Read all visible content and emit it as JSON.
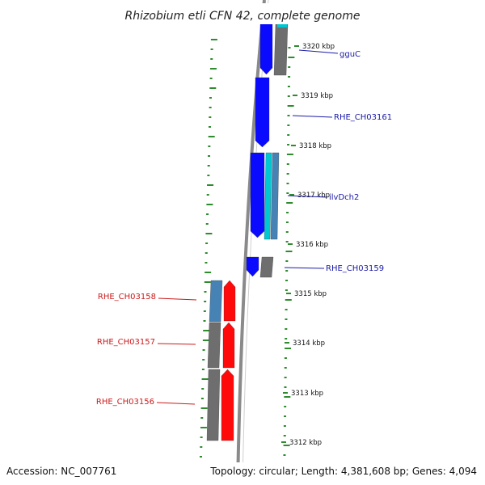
{
  "title": "Rhizobium etli CFN 42, complete genome",
  "footer": {
    "accession": "Accession: NC_007761",
    "topology": "Topology: circular; Length: 4,381,608 bp; Genes: 4,094"
  },
  "scale": {
    "ticks": [
      {
        "label": "3320 kbp"
      },
      {
        "label": "3319 kbp"
      },
      {
        "label": "3318 kbp"
      },
      {
        "label": "3317 kbp"
      },
      {
        "label": "3316 kbp"
      },
      {
        "label": "3315 kbp"
      },
      {
        "label": "3314 kbp"
      },
      {
        "label": "3313 kbp"
      },
      {
        "label": "3312 kbp"
      }
    ]
  },
  "gene_labels": {
    "forward": [
      "gguC",
      "RHE_CH03161",
      "ilvDch2",
      "RHE_CH03159"
    ],
    "reverse": [
      "RHE_CH03158",
      "RHE_CH03157",
      "RHE_CH03156"
    ]
  },
  "colors": {
    "forward_label": "#1a1aa8",
    "reverse_label": "#cc1a1a",
    "forward_gene": "#0a0aff",
    "reverse_gene": "#ff0a0a",
    "cds_gray": "#6e6e6e",
    "steelblue": "#4682b4",
    "cyan": "#00c8d2",
    "gc_dots": "#2e8b2e",
    "backbone": "#8a8a8a"
  }
}
